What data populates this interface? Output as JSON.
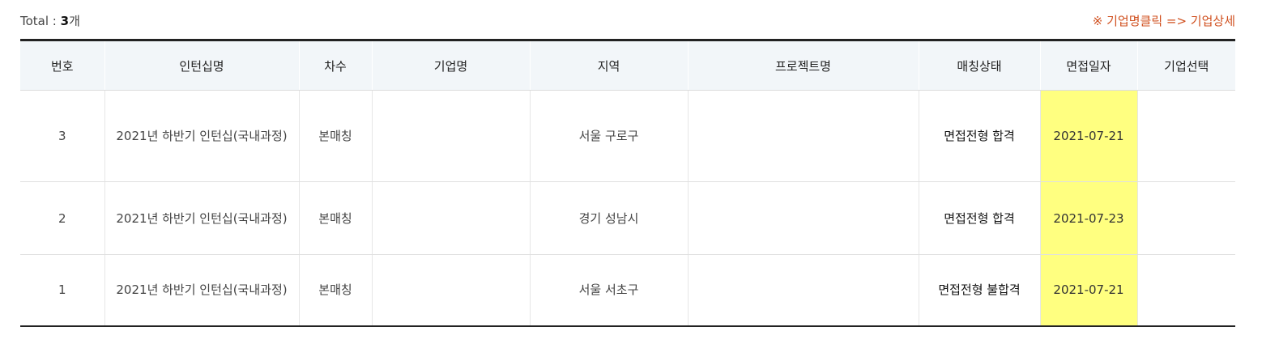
{
  "summary": {
    "total_label": "Total : ",
    "total_count": "3",
    "total_unit": "개",
    "notice": "※ 기업명클릭 => 기업상세"
  },
  "table": {
    "headers": [
      "번호",
      "인턴십명",
      "차수",
      "기업명",
      "지역",
      "프로젝트명",
      "매칭상태",
      "면접일자",
      "기업선택"
    ],
    "rows": [
      {
        "no": "3",
        "internship": "2021년 하반기 인턴십(국내과정)",
        "round": "본매칭",
        "company": "",
        "region": "서울 구로구",
        "project": "",
        "status": "면접전형 합격",
        "interview_date": "2021-07-21",
        "select": ""
      },
      {
        "no": "2",
        "internship": "2021년 하반기 인턴십(국내과정)",
        "round": "본매칭",
        "company": "",
        "region": "경기 성남시",
        "project": "",
        "status": "면접전형 합격",
        "interview_date": "2021-07-23",
        "select": ""
      },
      {
        "no": "1",
        "internship": "2021년 하반기 인턴십(국내과정)",
        "round": "본매칭",
        "company": "",
        "region": "서울 서초구",
        "project": "",
        "status": "면접전형 불합격",
        "interview_date": "2021-07-21",
        "select": ""
      }
    ]
  },
  "colors": {
    "header_bg": "#f2f6f9",
    "date_highlight": "#ffff80",
    "notice_text": "#d0501f",
    "table_border": "#222222"
  }
}
